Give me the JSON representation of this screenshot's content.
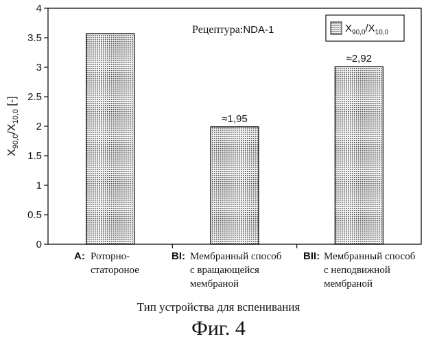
{
  "chart_data": {
    "type": "bar",
    "categories": [
      {
        "code": "A:",
        "lines": [
          "Роторно-",
          "статороное"
        ]
      },
      {
        "code": "BI:",
        "lines": [
          "Мембранный способ",
          "с вращающейся",
          "мембраной"
        ]
      },
      {
        "code": "BII:",
        "lines": [
          "Мембранный способ",
          "с неподвижной",
          "мембраной"
        ]
      }
    ],
    "values": [
      3.57,
      1.99,
      3.01
    ],
    "data_labels": [
      "",
      "≈1,95",
      "≈2,92"
    ],
    "ylim": [
      0,
      4
    ],
    "y_ticks": [
      "0",
      "0.5",
      "1",
      "1.5",
      "2",
      "2.5",
      "3",
      "3.5",
      "4"
    ],
    "y_tick_values": [
      0,
      0.5,
      1,
      1.5,
      2,
      2.5,
      3,
      3.5,
      4
    ],
    "ylabel": {
      "main": "X",
      "sub1": "90,0",
      "sep": "/X",
      "sub2": "10,0",
      "unit": " [-]"
    },
    "xlabel": "Тип устройства для вспенивания",
    "annotation": {
      "prefix": "Рецептура:",
      "value": "NDA-1"
    },
    "legend": {
      "position": "top-right",
      "label_main": "X",
      "label_sub1": "90,0",
      "label_sep": "/X",
      "label_sub2": "10,0"
    },
    "grid": false,
    "bar_fill": "#b8b8b8"
  },
  "figure_caption": "Фиг. 4"
}
